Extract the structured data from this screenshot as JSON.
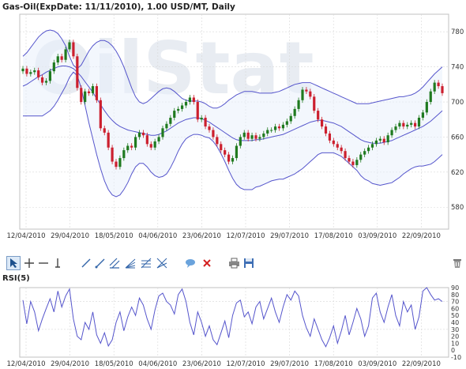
{
  "chart_title": "Gas-Oil(ExpDate: 11/11/2010), 1.00 USD/MT, Daily",
  "watermark_text": "OilStat",
  "rsi_title": "RSI(5)",
  "colors": {
    "up": "#1f7a1f",
    "down": "#cc1f2e",
    "band": "#5555cc",
    "rsi": "#5555cc",
    "band_fill": "#e8f0fb",
    "grid": "#d8d8d8"
  },
  "toolbar": {
    "items": [
      {
        "name": "pointer-tool-icon",
        "active": true
      },
      {
        "name": "crosshair-tool-icon"
      },
      {
        "name": "horizontal-line-tool-icon"
      },
      {
        "name": "vertical-line-tool-icon"
      },
      {
        "name": "trend-line-tool-icon"
      },
      {
        "name": "ray-tool-icon"
      },
      {
        "name": "parallel-lines-tool-icon"
      },
      {
        "name": "fibonacci-fan-tool-icon"
      },
      {
        "name": "fibonacci-retracement-tool-icon"
      },
      {
        "name": "gann-fan-tool-icon"
      },
      {
        "name": "comment-tool-icon"
      },
      {
        "name": "delete-tool-icon"
      },
      {
        "name": "print-icon"
      },
      {
        "name": "save-icon"
      },
      {
        "name": "trash-icon"
      }
    ]
  },
  "chart_data": [
    {
      "type": "candlestick",
      "title": "Gas-Oil(ExpDate: 11/11/2010), 1.00 USD/MT, Daily",
      "ylim": [
        555,
        800
      ],
      "yticks": [
        580,
        620,
        660,
        700,
        740,
        780
      ],
      "xlabels": [
        "12/04/2010",
        "29/04/2010",
        "18/05/2010",
        "04/06/2010",
        "23/06/2010",
        "12/07/2010",
        "29/07/2010",
        "17/08/2010",
        "03/09/2010",
        "22/09/2010"
      ],
      "grid": true,
      "close": [
        738,
        732,
        734,
        736,
        728,
        722,
        724,
        735,
        745,
        752,
        748,
        760,
        768,
        752,
        716,
        700,
        712,
        710,
        718,
        702,
        670,
        665,
        648,
        632,
        626,
        636,
        645,
        650,
        648,
        660,
        665,
        662,
        652,
        648,
        655,
        660,
        670,
        675,
        682,
        690,
        692,
        696,
        700,
        705,
        700,
        680,
        682,
        672,
        668,
        660,
        652,
        645,
        640,
        632,
        636,
        650,
        660,
        665,
        658,
        662,
        658,
        660,
        664,
        668,
        668,
        672,
        670,
        674,
        678,
        684,
        692,
        702,
        714,
        712,
        706,
        690,
        680,
        672,
        664,
        656,
        652,
        648,
        644,
        636,
        632,
        628,
        634,
        640,
        644,
        648,
        652,
        656,
        658,
        654,
        662,
        668,
        672,
        676,
        672,
        674,
        676,
        672,
        682,
        688,
        700,
        712,
        722,
        718,
        710
      ],
      "open": [
        735,
        738,
        732,
        734,
        736,
        728,
        722,
        724,
        735,
        745,
        752,
        748,
        760,
        768,
        752,
        716,
        700,
        712,
        710,
        718,
        702,
        670,
        665,
        648,
        632,
        626,
        636,
        645,
        650,
        648,
        660,
        665,
        662,
        652,
        648,
        655,
        660,
        670,
        675,
        682,
        690,
        692,
        696,
        700,
        705,
        700,
        680,
        682,
        672,
        668,
        660,
        652,
        645,
        640,
        632,
        636,
        650,
        660,
        665,
        658,
        662,
        658,
        660,
        664,
        668,
        668,
        672,
        670,
        674,
        678,
        684,
        692,
        702,
        714,
        712,
        706,
        690,
        680,
        672,
        664,
        656,
        652,
        648,
        644,
        636,
        632,
        628,
        634,
        640,
        644,
        648,
        652,
        656,
        658,
        654,
        662,
        668,
        672,
        676,
        672,
        674,
        676,
        672,
        682,
        688,
        700,
        712,
        722,
        718
      ],
      "bollinger_middle": [
        718,
        720,
        723,
        726,
        729,
        731,
        734,
        736,
        738,
        740,
        741,
        741,
        740,
        738,
        734,
        729,
        723,
        717,
        711,
        704,
        697,
        690,
        684,
        679,
        675,
        672,
        670,
        668,
        667,
        666,
        665,
        664,
        663,
        662,
        662,
        663,
        665,
        667,
        670,
        673,
        676,
        678,
        680,
        681,
        682,
        682,
        681,
        679,
        677,
        674,
        671,
        668,
        665,
        662,
        659,
        657,
        656,
        656,
        656,
        656,
        657,
        657,
        658,
        659,
        660,
        661,
        662,
        663,
        665,
        667,
        669,
        671,
        673,
        675,
        677,
        678,
        679,
        679,
        678,
        677,
        676,
        674,
        672,
        669,
        666,
        663,
        660,
        657,
        655,
        654,
        653,
        653,
        653,
        654,
        655,
        656,
        658,
        660,
        662,
        664,
        666,
        668,
        670,
        672,
        675,
        678,
        682,
        686,
        690
      ],
      "bollinger_upper": [
        752,
        756,
        762,
        768,
        774,
        778,
        781,
        782,
        781,
        778,
        772,
        764,
        752,
        742,
        738,
        742,
        750,
        758,
        764,
        768,
        770,
        770,
        768,
        764,
        758,
        750,
        740,
        728,
        716,
        706,
        700,
        698,
        700,
        704,
        708,
        712,
        715,
        716,
        715,
        712,
        708,
        704,
        702,
        701,
        701,
        701,
        700,
        698,
        695,
        693,
        693,
        695,
        698,
        702,
        705,
        708,
        710,
        712,
        712,
        712,
        711,
        710,
        710,
        710,
        710,
        711,
        712,
        714,
        716,
        718,
        720,
        721,
        722,
        722,
        722,
        720,
        718,
        716,
        714,
        712,
        710,
        708,
        706,
        704,
        702,
        700,
        698,
        698,
        698,
        698,
        699,
        700,
        701,
        702,
        703,
        704,
        705,
        706,
        706,
        707,
        708,
        710,
        713,
        717,
        722,
        727,
        732,
        736,
        740
      ],
      "bollinger_lower": [
        684,
        684,
        684,
        684,
        684,
        684,
        687,
        690,
        695,
        702,
        710,
        718,
        728,
        734,
        730,
        716,
        696,
        676,
        658,
        640,
        624,
        610,
        600,
        594,
        592,
        594,
        600,
        608,
        618,
        626,
        630,
        630,
        626,
        620,
        616,
        614,
        615,
        618,
        625,
        634,
        644,
        652,
        658,
        661,
        663,
        663,
        662,
        660,
        659,
        655,
        649,
        641,
        632,
        622,
        613,
        606,
        602,
        600,
        600,
        600,
        603,
        604,
        606,
        608,
        610,
        611,
        612,
        612,
        614,
        616,
        618,
        621,
        624,
        628,
        632,
        636,
        640,
        642,
        642,
        642,
        642,
        640,
        638,
        634,
        630,
        626,
        622,
        616,
        612,
        610,
        607,
        606,
        605,
        606,
        607,
        608,
        611,
        614,
        618,
        621,
        624,
        626,
        627,
        627,
        628,
        629,
        632,
        636,
        640
      ]
    },
    {
      "type": "line",
      "title": "RSI(5)",
      "ylim": [
        -10,
        90
      ],
      "yticks": [
        -10,
        0,
        10,
        20,
        30,
        40,
        50,
        60,
        70,
        80,
        90
      ],
      "xlabels": [
        "12/04/2010",
        "29/04/2010",
        "18/05/2010",
        "04/06/2010",
        "23/06/2010",
        "12/07/2010",
        "29/07/2010",
        "17/08/2010",
        "03/09/2010",
        "22/09/2010"
      ],
      "values": [
        72,
        38,
        70,
        55,
        28,
        45,
        60,
        74,
        55,
        85,
        62,
        78,
        88,
        45,
        20,
        15,
        40,
        30,
        55,
        22,
        10,
        25,
        6,
        15,
        40,
        55,
        28,
        48,
        62,
        50,
        75,
        65,
        45,
        30,
        58,
        78,
        82,
        70,
        65,
        52,
        80,
        88,
        70,
        40,
        22,
        55,
        40,
        20,
        35,
        15,
        8,
        25,
        42,
        18,
        50,
        68,
        72,
        48,
        55,
        38,
        62,
        70,
        45,
        60,
        75,
        55,
        40,
        62,
        80,
        72,
        85,
        78,
        50,
        32,
        20,
        45,
        30,
        15,
        5,
        18,
        35,
        10,
        28,
        50,
        22,
        40,
        60,
        45,
        20,
        35,
        75,
        82,
        55,
        40,
        62,
        80,
        50,
        35,
        70,
        55,
        65,
        30,
        48,
        85,
        90,
        80,
        72,
        74,
        70
      ]
    }
  ]
}
